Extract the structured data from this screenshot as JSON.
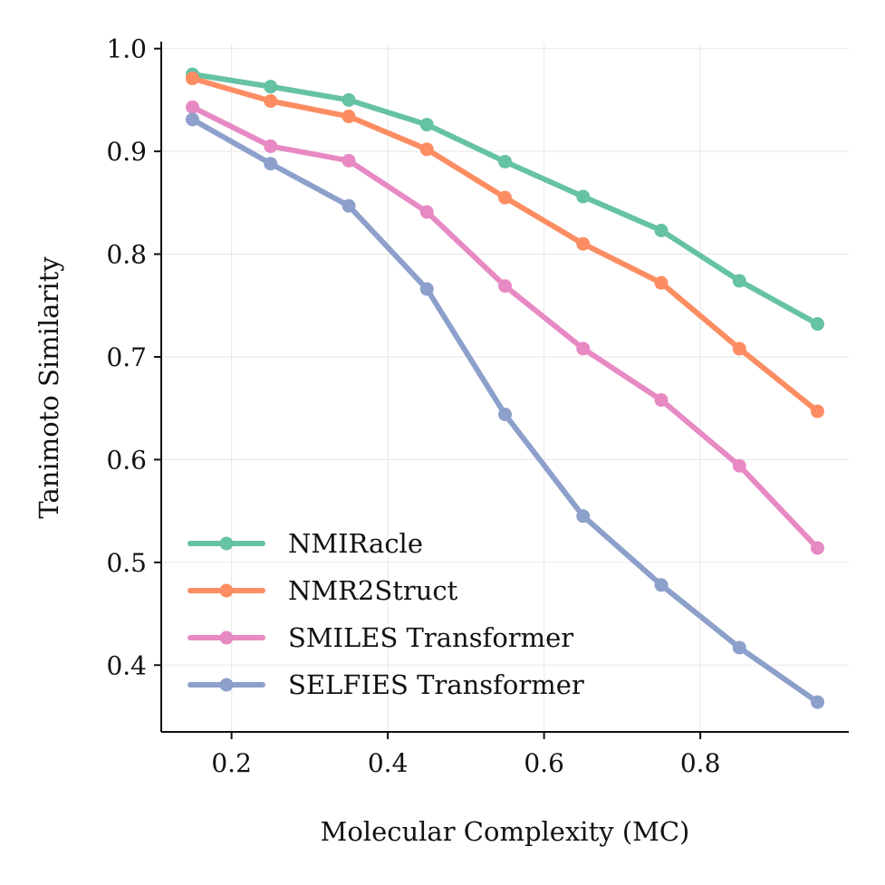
{
  "chart_data": {
    "type": "line",
    "title": "",
    "xlabel": "Molecular Complexity (MC)",
    "ylabel": "Tanimoto Similarity",
    "xlim": [
      0.11,
      0.99
    ],
    "ylim": [
      0.335,
      1.005
    ],
    "xticks": [
      0.2,
      0.4,
      0.6,
      0.8
    ],
    "xtick_labels": [
      "0.2",
      "0.4",
      "0.6",
      "0.8"
    ],
    "yticks": [
      0.4,
      0.5,
      0.6,
      0.7,
      0.8,
      0.9,
      1.0
    ],
    "ytick_labels": [
      "0.4",
      "0.5",
      "0.6",
      "0.7",
      "0.8",
      "0.9",
      "1.0"
    ],
    "grid": true,
    "legend_position": "lower-left",
    "x": [
      0.15,
      0.25,
      0.35,
      0.45,
      0.55,
      0.65,
      0.75,
      0.85,
      0.95
    ],
    "series": [
      {
        "name": "NMIRacle",
        "color": "#66c2a5",
        "values": [
          0.975,
          0.963,
          0.95,
          0.926,
          0.89,
          0.856,
          0.823,
          0.774,
          0.732
        ]
      },
      {
        "name": "NMR2Struct",
        "color": "#fc8d62",
        "values": [
          0.971,
          0.949,
          0.934,
          0.902,
          0.855,
          0.81,
          0.772,
          0.708,
          0.647
        ]
      },
      {
        "name": "SMILES Transformer",
        "color": "#e78ac3",
        "values": [
          0.943,
          0.905,
          0.891,
          0.841,
          0.769,
          0.708,
          0.658,
          0.594,
          0.514
        ]
      },
      {
        "name": "SELFIES Transformer",
        "color": "#8da0cb",
        "values": [
          0.931,
          0.888,
          0.847,
          0.766,
          0.644,
          0.545,
          0.478,
          0.417,
          0.364
        ]
      }
    ]
  }
}
